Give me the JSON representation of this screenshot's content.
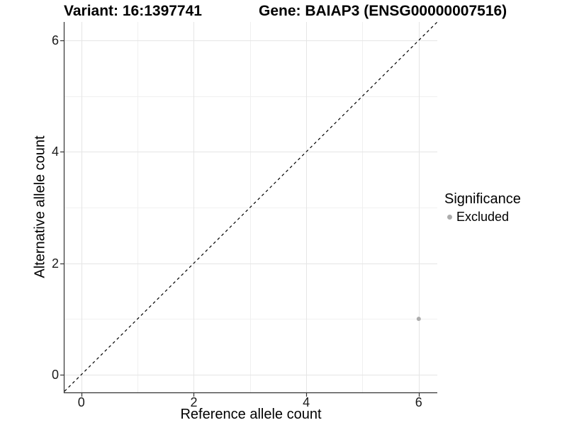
{
  "titles": {
    "variant": "Variant: 16:1397741",
    "gene": "Gene: BAIAP3 (ENSG00000007516)"
  },
  "axes": {
    "x_label": "Reference allele count",
    "y_label": "Alternative allele count",
    "x_tick_labels": [
      "0",
      "2",
      "4",
      "6"
    ],
    "y_tick_labels": [
      "0",
      "2",
      "4",
      "6"
    ]
  },
  "legend": {
    "title": "Significance",
    "items": [
      {
        "label": "Excluded",
        "color": "#acacac"
      }
    ]
  },
  "chart_data": {
    "type": "scatter",
    "title": "Variant: 16:1397741   |   Gene: BAIAP3 (ENSG00000007516)",
    "xlabel": "Reference allele count",
    "ylabel": "Alternative allele count",
    "xlim": [
      -0.3,
      6.33
    ],
    "ylim": [
      -0.32,
      6.33
    ],
    "x_major_ticks": [
      0,
      2,
      4,
      6
    ],
    "y_major_ticks": [
      0,
      2,
      4,
      6
    ],
    "x_minor_ticks": [
      1,
      3,
      5
    ],
    "y_minor_ticks": [
      1,
      3,
      5
    ],
    "grid": true,
    "legend_position": "right",
    "reference_line": {
      "type": "identity",
      "slope": 1,
      "intercept": 0,
      "style": "dashed",
      "color": "#000000"
    },
    "series": [
      {
        "name": "Excluded",
        "color": "#acacac",
        "points": [
          {
            "x": 6,
            "y": 1
          }
        ]
      }
    ],
    "colors": {
      "grid_major": "#e5e5e5",
      "grid_minor": "#f0f0f0",
      "axis_line": "#333333",
      "tick_mark": "#333333",
      "background": "#ffffff"
    }
  }
}
